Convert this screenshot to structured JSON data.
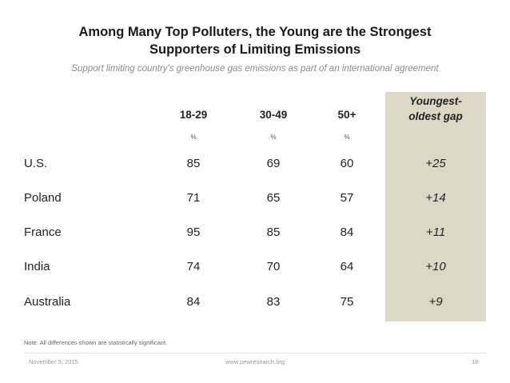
{
  "chart_data": {
    "type": "table",
    "title_line1": "Among Many Top Polluters, the Young are the Strongest",
    "title_line2": "Supporters of Limiting Emissions",
    "subtitle": "Support limiting country's greenhouse gas emissions as part of an international agreement",
    "columns": [
      "18-29",
      "30-49",
      "50+"
    ],
    "unit_marker": "%",
    "gap_header_line1": "Youngest-",
    "gap_header_line2": "oldest gap",
    "rows": [
      {
        "country": "U.S.",
        "values": [
          "85",
          "69",
          "60"
        ],
        "gap": "+25"
      },
      {
        "country": "Poland",
        "values": [
          "71",
          "65",
          "57"
        ],
        "gap": "+14"
      },
      {
        "country": "France",
        "values": [
          "95",
          "85",
          "84"
        ],
        "gap": "+11"
      },
      {
        "country": "India",
        "values": [
          "74",
          "70",
          "64"
        ],
        "gap": "+10"
      },
      {
        "country": "Australia",
        "values": [
          "84",
          "83",
          "75"
        ],
        "gap": "+9"
      }
    ],
    "gap_column_color": "#ddd8c6"
  },
  "note": "Note: All differences shown are statistically significant.",
  "footer": {
    "date": "November 5, 2015",
    "url": "www.pewresearch.org",
    "page": "18"
  }
}
